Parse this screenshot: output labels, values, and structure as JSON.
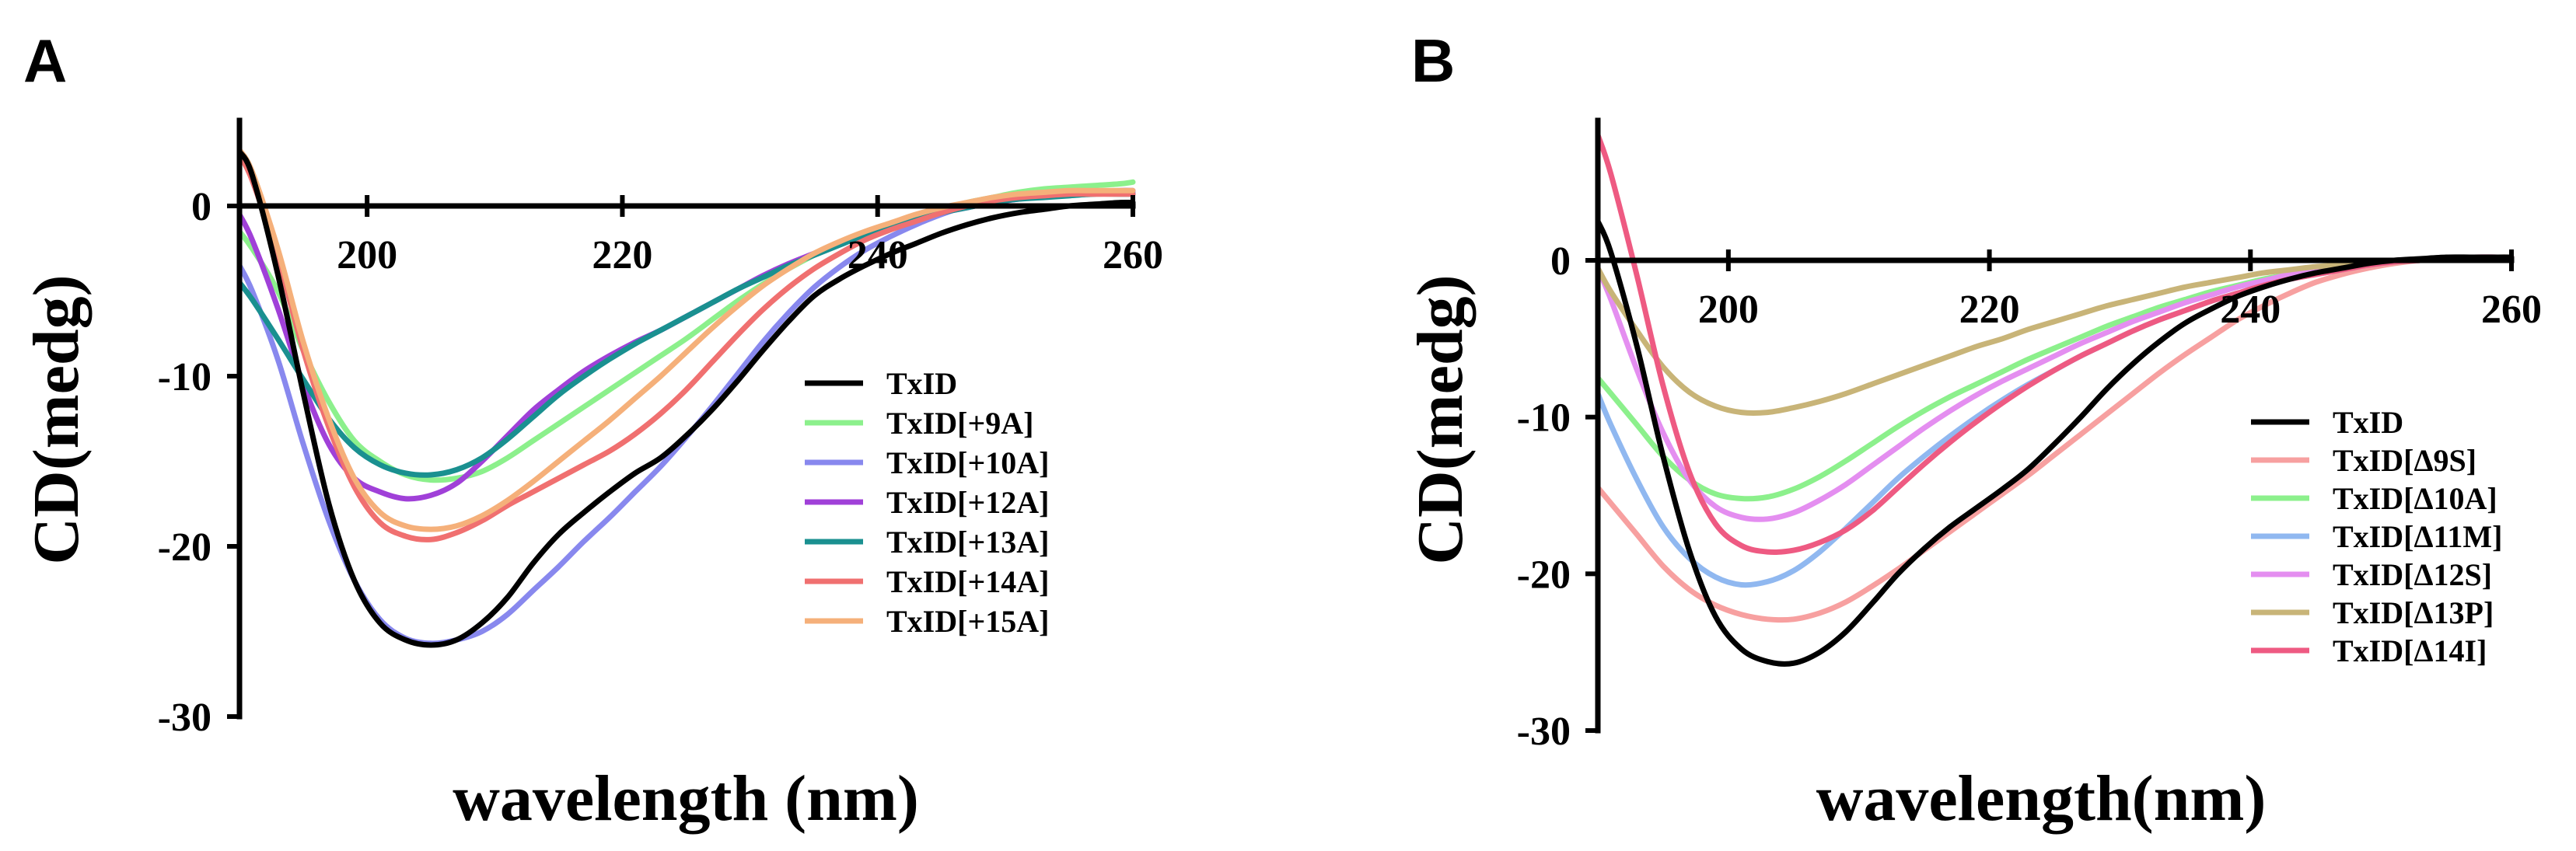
{
  "panels": [
    {
      "letter": "A",
      "chart_data": {
        "type": "line",
        "title": "",
        "xlabel": "wavelength (nm)",
        "ylabel": "CD(medg)",
        "xlim": [
          190,
          260
        ],
        "ylim": [
          -30,
          5
        ],
        "xticks": [
          200,
          220,
          240,
          260
        ],
        "yticks": [
          0,
          -10,
          -20,
          -30
        ],
        "x": [
          190,
          191,
          193,
          195,
          197,
          199,
          201,
          203,
          205,
          207,
          209,
          211,
          213,
          215,
          217,
          219,
          221,
          223,
          225,
          227,
          229,
          231,
          233,
          235,
          237,
          239,
          241,
          243,
          245,
          247,
          249,
          251,
          253,
          255,
          257,
          259,
          260
        ],
        "series": [
          {
            "name": "TxID",
            "color": "#000000",
            "values": [
              3.2,
              1.8,
              -4.0,
              -11.0,
              -17.5,
              -22.0,
              -24.5,
              -25.5,
              -25.8,
              -25.5,
              -24.5,
              -23.0,
              -21.0,
              -19.3,
              -18.0,
              -16.8,
              -15.7,
              -14.8,
              -13.5,
              -12.0,
              -10.3,
              -8.5,
              -6.8,
              -5.3,
              -4.3,
              -3.5,
              -2.8,
              -2.2,
              -1.6,
              -1.1,
              -0.7,
              -0.4,
              -0.2,
              0.0,
              0.1,
              0.2,
              0.2
            ]
          },
          {
            "name": "TxID[+9A]",
            "color": "#8cf08c",
            "values": [
              -1.5,
              -2.5,
              -5.0,
              -8.5,
              -11.5,
              -13.8,
              -15.0,
              -15.8,
              -16.1,
              -16.0,
              -15.6,
              -14.8,
              -13.8,
              -12.8,
              -11.8,
              -10.8,
              -9.8,
              -8.8,
              -7.8,
              -6.7,
              -5.6,
              -4.6,
              -3.7,
              -2.9,
              -2.2,
              -1.6,
              -1.1,
              -0.6,
              -0.2,
              0.2,
              0.5,
              0.8,
              1.0,
              1.1,
              1.2,
              1.3,
              1.4
            ]
          },
          {
            "name": "TxID[+10A]",
            "color": "#8888ee",
            "values": [
              -3.5,
              -5.0,
              -9.0,
              -14.0,
              -18.5,
              -22.0,
              -24.3,
              -25.4,
              -25.7,
              -25.5,
              -25.0,
              -24.0,
              -22.6,
              -21.2,
              -19.7,
              -18.3,
              -16.8,
              -15.3,
              -13.6,
              -11.8,
              -9.9,
              -8.0,
              -6.3,
              -4.8,
              -3.6,
              -2.6,
              -1.8,
              -1.1,
              -0.5,
              0.0,
              0.3,
              0.5,
              0.6,
              0.7,
              0.8,
              0.8,
              0.8
            ]
          },
          {
            "name": "TxID[+12A]",
            "color": "#a040d8",
            "values": [
              -0.5,
              -2.0,
              -6.0,
              -10.5,
              -14.0,
              -16.0,
              -16.8,
              -17.2,
              -17.0,
              -16.3,
              -15.0,
              -13.5,
              -12.0,
              -10.8,
              -9.7,
              -8.8,
              -8.0,
              -7.3,
              -6.5,
              -5.7,
              -4.9,
              -4.1,
              -3.4,
              -2.8,
              -2.2,
              -1.7,
              -1.2,
              -0.8,
              -0.4,
              -0.1,
              0.2,
              0.4,
              0.6,
              0.7,
              0.8,
              0.9,
              0.9
            ]
          },
          {
            "name": "TxID[+13A]",
            "color": "#1a9090",
            "values": [
              -4.5,
              -5.5,
              -7.8,
              -10.2,
              -12.5,
              -14.2,
              -15.2,
              -15.7,
              -15.8,
              -15.5,
              -14.8,
              -13.7,
              -12.4,
              -11.1,
              -10.0,
              -9.0,
              -8.1,
              -7.3,
              -6.5,
              -5.7,
              -4.9,
              -4.2,
              -3.5,
              -2.9,
              -2.3,
              -1.7,
              -1.2,
              -0.8,
              -0.4,
              -0.1,
              0.2,
              0.4,
              0.5,
              0.6,
              0.7,
              0.7,
              0.7
            ]
          },
          {
            "name": "TxID[+14A]",
            "color": "#f07070",
            "values": [
              3.0,
              1.5,
              -3.0,
              -8.5,
              -13.0,
              -16.5,
              -18.6,
              -19.4,
              -19.6,
              -19.2,
              -18.5,
              -17.6,
              -16.8,
              -16.0,
              -15.2,
              -14.4,
              -13.4,
              -12.2,
              -10.8,
              -9.2,
              -7.6,
              -6.1,
              -4.8,
              -3.7,
              -2.8,
              -2.0,
              -1.4,
              -0.9,
              -0.4,
              0.0,
              0.3,
              0.5,
              0.6,
              0.7,
              0.7,
              0.7,
              0.7
            ]
          },
          {
            "name": "TxID[+15A]",
            "color": "#f5b07a",
            "values": [
              3.3,
              2.0,
              -2.5,
              -8.0,
              -12.5,
              -16.0,
              -18.0,
              -18.8,
              -19.0,
              -18.8,
              -18.2,
              -17.3,
              -16.2,
              -15.0,
              -13.8,
              -12.6,
              -11.3,
              -10.0,
              -8.6,
              -7.2,
              -5.9,
              -4.7,
              -3.7,
              -2.8,
              -2.1,
              -1.5,
              -1.0,
              -0.5,
              -0.1,
              0.2,
              0.5,
              0.7,
              0.8,
              0.9,
              0.9,
              0.9,
              0.9
            ]
          }
        ]
      }
    },
    {
      "letter": "B",
      "chart_data": {
        "type": "line",
        "title": "",
        "xlabel": "wavelength(nm)",
        "ylabel": "CD(medg)",
        "xlim": [
          190,
          260
        ],
        "ylim": [
          -30,
          10
        ],
        "xticks": [
          200,
          220,
          240,
          260
        ],
        "yticks": [
          0,
          -10,
          -20,
          -30
        ],
        "x": [
          190,
          191,
          193,
          195,
          197,
          199,
          201,
          203,
          205,
          207,
          209,
          211,
          213,
          215,
          217,
          219,
          221,
          223,
          225,
          227,
          229,
          231,
          233,
          235,
          237,
          239,
          241,
          243,
          245,
          247,
          249,
          251,
          253,
          255,
          257,
          259,
          260
        ],
        "series": [
          {
            "name": "TxID",
            "color": "#000000",
            "values": [
              2.5,
              0.5,
              -5.5,
              -12.5,
              -18.5,
              -22.7,
              -24.8,
              -25.6,
              -25.7,
              -25.0,
              -23.7,
              -21.9,
              -20.0,
              -18.4,
              -17.0,
              -15.8,
              -14.6,
              -13.3,
              -11.7,
              -10.0,
              -8.2,
              -6.6,
              -5.2,
              -4.0,
              -3.1,
              -2.3,
              -1.7,
              -1.2,
              -0.8,
              -0.5,
              -0.2,
              0.0,
              0.1,
              0.2,
              0.2,
              0.2,
              0.2
            ]
          },
          {
            "name": "TxID[Δ9S]",
            "color": "#f7a0a0",
            "values": [
              -14.5,
              -15.5,
              -17.5,
              -19.5,
              -21.0,
              -22.0,
              -22.6,
              -22.9,
              -22.9,
              -22.5,
              -21.8,
              -20.8,
              -19.7,
              -18.5,
              -17.3,
              -16.1,
              -14.9,
              -13.7,
              -12.4,
              -11.1,
              -9.8,
              -8.5,
              -7.2,
              -6.0,
              -4.9,
              -3.8,
              -2.9,
              -2.1,
              -1.4,
              -0.9,
              -0.5,
              -0.2,
              0.0,
              0.1,
              0.2,
              0.2,
              0.2
            ]
          },
          {
            "name": "TxID[Δ10A]",
            "color": "#8cf08c",
            "values": [
              -7.5,
              -8.5,
              -10.5,
              -12.5,
              -14.0,
              -14.9,
              -15.2,
              -15.1,
              -14.6,
              -13.8,
              -12.8,
              -11.7,
              -10.6,
              -9.6,
              -8.7,
              -7.9,
              -7.1,
              -6.3,
              -5.6,
              -4.9,
              -4.2,
              -3.6,
              -3.0,
              -2.5,
              -2.0,
              -1.6,
              -1.2,
              -0.9,
              -0.6,
              -0.4,
              -0.2,
              -0.1,
              0.0,
              0.1,
              0.1,
              0.2,
              0.2
            ]
          },
          {
            "name": "TxID[Δ11M]",
            "color": "#90b8f0",
            "values": [
              -8.5,
              -10.5,
              -14.0,
              -17.0,
              -19.0,
              -20.2,
              -20.7,
              -20.5,
              -19.8,
              -18.6,
              -17.1,
              -15.5,
              -13.9,
              -12.5,
              -11.2,
              -10.0,
              -8.9,
              -7.9,
              -7.0,
              -6.1,
              -5.3,
              -4.5,
              -3.8,
              -3.2,
              -2.6,
              -2.1,
              -1.6,
              -1.2,
              -0.9,
              -0.6,
              -0.3,
              -0.1,
              0.0,
              0.1,
              0.2,
              0.2,
              0.2
            ]
          },
          {
            "name": "TxID[Δ12S]",
            "color": "#e48ef0",
            "values": [
              -0.5,
              -2.5,
              -7.0,
              -11.0,
              -14.0,
              -15.7,
              -16.4,
              -16.5,
              -16.1,
              -15.3,
              -14.3,
              -13.1,
              -11.9,
              -10.7,
              -9.6,
              -8.6,
              -7.7,
              -6.9,
              -6.1,
              -5.3,
              -4.6,
              -3.9,
              -3.3,
              -2.7,
              -2.2,
              -1.7,
              -1.3,
              -0.9,
              -0.6,
              -0.4,
              -0.2,
              -0.1,
              0.0,
              0.1,
              0.1,
              0.2,
              0.2
            ]
          },
          {
            "name": "TxID[Δ13P]",
            "color": "#c8b478",
            "values": [
              -0.5,
              -2.0,
              -4.5,
              -6.8,
              -8.4,
              -9.3,
              -9.7,
              -9.7,
              -9.4,
              -9.0,
              -8.5,
              -7.9,
              -7.3,
              -6.7,
              -6.1,
              -5.5,
              -5.0,
              -4.4,
              -3.9,
              -3.4,
              -2.9,
              -2.5,
              -2.1,
              -1.7,
              -1.4,
              -1.1,
              -0.8,
              -0.6,
              -0.4,
              -0.3,
              -0.2,
              -0.1,
              0.0,
              0.1,
              0.1,
              0.2,
              0.2
            ]
          },
          {
            "name": "TxID[Δ14I]",
            "color": "#ee5a82",
            "values": [
              8.0,
              5.5,
              -1.0,
              -8.0,
              -13.5,
              -16.8,
              -18.2,
              -18.6,
              -18.5,
              -18.0,
              -17.2,
              -16.0,
              -14.5,
              -13.0,
              -11.6,
              -10.3,
              -9.1,
              -8.0,
              -7.0,
              -6.1,
              -5.3,
              -4.5,
              -3.8,
              -3.2,
              -2.6,
              -2.1,
              -1.6,
              -1.2,
              -0.9,
              -0.6,
              -0.3,
              -0.1,
              0.0,
              0.1,
              0.2,
              0.2,
              0.2
            ]
          }
        ]
      }
    }
  ]
}
